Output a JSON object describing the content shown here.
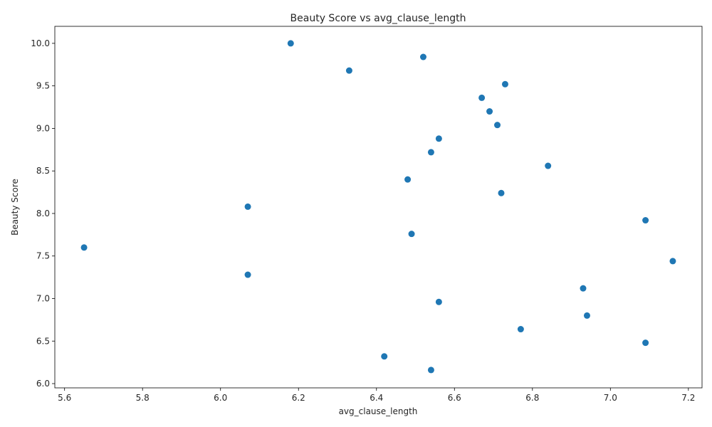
{
  "chart_data": {
    "type": "scatter",
    "title": "Beauty Score vs avg_clause_length",
    "xlabel": "avg_clause_length",
    "ylabel": "Beauty Score",
    "xlim": [
      5.575,
      7.235
    ],
    "ylim": [
      5.95,
      10.2
    ],
    "xticks": [
      "5.6",
      "5.8",
      "6.0",
      "6.2",
      "6.4",
      "6.6",
      "6.8",
      "7.0",
      "7.2"
    ],
    "yticks": [
      "6.0",
      "6.5",
      "7.0",
      "7.5",
      "8.0",
      "8.5",
      "9.0",
      "9.5",
      "10.0"
    ],
    "grid": false,
    "marker_color": "#1f77b4",
    "points": [
      {
        "x": 6.18,
        "y": 10.0
      },
      {
        "x": 6.52,
        "y": 9.84
      },
      {
        "x": 6.33,
        "y": 9.68
      },
      {
        "x": 6.73,
        "y": 9.52
      },
      {
        "x": 6.67,
        "y": 9.36
      },
      {
        "x": 6.69,
        "y": 9.2
      },
      {
        "x": 6.71,
        "y": 9.04
      },
      {
        "x": 6.56,
        "y": 8.88
      },
      {
        "x": 6.54,
        "y": 8.72
      },
      {
        "x": 6.84,
        "y": 8.56
      },
      {
        "x": 6.48,
        "y": 8.4
      },
      {
        "x": 6.72,
        "y": 8.24
      },
      {
        "x": 6.07,
        "y": 8.08
      },
      {
        "x": 7.09,
        "y": 7.92
      },
      {
        "x": 6.49,
        "y": 7.76
      },
      {
        "x": 5.65,
        "y": 7.6
      },
      {
        "x": 7.16,
        "y": 7.44
      },
      {
        "x": 6.07,
        "y": 7.28
      },
      {
        "x": 6.93,
        "y": 7.12
      },
      {
        "x": 6.56,
        "y": 6.96
      },
      {
        "x": 6.94,
        "y": 6.8
      },
      {
        "x": 6.77,
        "y": 6.64
      },
      {
        "x": 7.09,
        "y": 6.48
      },
      {
        "x": 6.42,
        "y": 6.32
      },
      {
        "x": 6.54,
        "y": 6.16
      }
    ]
  }
}
